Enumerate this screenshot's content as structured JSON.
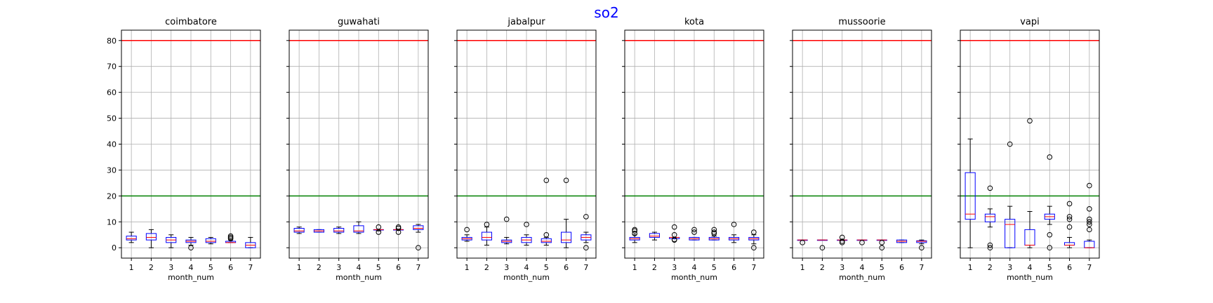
{
  "figure": {
    "title": "so2"
  },
  "colors": {
    "box": "#0000ff",
    "median": "#ff0000",
    "whisker": "#000000",
    "grid": "#b0b0b0",
    "upper_line": "#ff0000",
    "lower_line": "#008000"
  },
  "chart_data": {
    "type": "box",
    "xlabel": "month_num",
    "categories": [
      "1",
      "2",
      "3",
      "4",
      "5",
      "6",
      "7"
    ],
    "yticks": [
      "0",
      "10",
      "20",
      "30",
      "40",
      "50",
      "60",
      "70",
      "80"
    ],
    "ylim": [
      -4,
      84
    ],
    "grid": true,
    "reference_lines": [
      {
        "value": 80,
        "color": "red"
      },
      {
        "value": 20,
        "color": "green"
      }
    ],
    "panels": [
      {
        "title": "coimbatore",
        "boxes": [
          {
            "month": 1,
            "whislo": 2,
            "q1": 3,
            "med": 3.5,
            "q3": 4.5,
            "whishi": 6,
            "fliers": []
          },
          {
            "month": 2,
            "whislo": 0,
            "q1": 3,
            "med": 4,
            "q3": 5.5,
            "whishi": 7,
            "fliers": []
          },
          {
            "month": 3,
            "whislo": 0,
            "q1": 2,
            "med": 3,
            "q3": 4,
            "whishi": 5,
            "fliers": []
          },
          {
            "month": 4,
            "whislo": 1,
            "q1": 2,
            "med": 2.5,
            "q3": 3,
            "whishi": 4,
            "fliers": [
              0
            ]
          },
          {
            "month": 5,
            "whislo": 1.5,
            "q1": 2,
            "med": 2.5,
            "q3": 3.5,
            "whishi": 4,
            "fliers": []
          },
          {
            "month": 6,
            "whislo": 2,
            "q1": 2,
            "med": 2,
            "q3": 2.5,
            "whishi": 3,
            "fliers": [
              3.5,
              4,
              4.5
            ]
          },
          {
            "month": 7,
            "whislo": 0,
            "q1": 0,
            "med": 1,
            "q3": 2,
            "whishi": 4,
            "fliers": []
          }
        ]
      },
      {
        "title": "guwahati",
        "boxes": [
          {
            "month": 1,
            "whislo": 5.5,
            "q1": 6,
            "med": 6.5,
            "q3": 7.5,
            "whishi": 8,
            "fliers": []
          },
          {
            "month": 2,
            "whislo": 6,
            "q1": 6,
            "med": 6.5,
            "q3": 7,
            "whishi": 7,
            "fliers": []
          },
          {
            "month": 3,
            "whislo": 5.5,
            "q1": 6,
            "med": 6.5,
            "q3": 7.5,
            "whishi": 8,
            "fliers": []
          },
          {
            "month": 4,
            "whislo": 5.5,
            "q1": 6,
            "med": 6.5,
            "q3": 8.5,
            "whishi": 10,
            "fliers": []
          },
          {
            "month": 5,
            "whislo": 6.5,
            "q1": 7,
            "med": 7,
            "q3": 7,
            "whishi": 7,
            "fliers": [
              6,
              8
            ]
          },
          {
            "month": 6,
            "whislo": 7,
            "q1": 7,
            "med": 7,
            "q3": 7,
            "whishi": 7,
            "fliers": [
              6,
              7.5,
              8
            ]
          },
          {
            "month": 7,
            "whislo": 6,
            "q1": 7,
            "med": 7.5,
            "q3": 8.5,
            "whishi": 9,
            "fliers": [
              0
            ]
          }
        ]
      },
      {
        "title": "jabalpur",
        "boxes": [
          {
            "month": 1,
            "whislo": 2.5,
            "q1": 3,
            "med": 3.5,
            "q3": 4,
            "whishi": 5,
            "fliers": [
              7
            ]
          },
          {
            "month": 2,
            "whislo": 1,
            "q1": 3,
            "med": 4,
            "q3": 6,
            "whishi": 8,
            "fliers": [
              9
            ]
          },
          {
            "month": 3,
            "whislo": 1.5,
            "q1": 2,
            "med": 2.5,
            "q3": 3,
            "whishi": 4,
            "fliers": [
              11
            ]
          },
          {
            "month": 4,
            "whislo": 1,
            "q1": 2,
            "med": 3,
            "q3": 4,
            "whishi": 5,
            "fliers": [
              9
            ]
          },
          {
            "month": 5,
            "whislo": 1,
            "q1": 2,
            "med": 2.5,
            "q3": 3.5,
            "whishi": 4,
            "fliers": [
              5,
              26
            ]
          },
          {
            "month": 6,
            "whislo": 0,
            "q1": 2,
            "med": 3,
            "q3": 6,
            "whishi": 11,
            "fliers": [
              26
            ]
          },
          {
            "month": 7,
            "whislo": 2,
            "q1": 3,
            "med": 4,
            "q3": 5,
            "whishi": 6,
            "fliers": [
              0,
              12
            ]
          }
        ]
      },
      {
        "title": "kota",
        "boxes": [
          {
            "month": 1,
            "whislo": 2,
            "q1": 3,
            "med": 3.5,
            "q3": 4,
            "whishi": 5,
            "fliers": [
              5.5,
              6.5,
              7
            ]
          },
          {
            "month": 2,
            "whislo": 3,
            "q1": 4,
            "med": 4.5,
            "q3": 5.5,
            "whishi": 6,
            "fliers": []
          },
          {
            "month": 3,
            "whislo": 3.5,
            "q1": 3.5,
            "med": 4,
            "q3": 4,
            "whishi": 4,
            "fliers": [
              3,
              3.2,
              5,
              8
            ]
          },
          {
            "month": 4,
            "whislo": 3,
            "q1": 3,
            "med": 3.5,
            "q3": 4,
            "whishi": 4,
            "fliers": [
              6,
              7
            ]
          },
          {
            "month": 5,
            "whislo": 3,
            "q1": 3,
            "med": 3.5,
            "q3": 4,
            "whishi": 4.5,
            "fliers": [
              5.5,
              6,
              7
            ]
          },
          {
            "month": 6,
            "whislo": 2,
            "q1": 3,
            "med": 3.5,
            "q3": 4,
            "whishi": 5,
            "fliers": [
              9
            ]
          },
          {
            "month": 7,
            "whislo": 1.5,
            "q1": 3,
            "med": 3.5,
            "q3": 4,
            "whishi": 5,
            "fliers": [
              0,
              6
            ]
          }
        ]
      },
      {
        "title": "mussoorie",
        "boxes": [
          {
            "month": 1,
            "whislo": 3,
            "q1": 3,
            "med": 3,
            "q3": 3,
            "whishi": 3,
            "fliers": [
              2
            ]
          },
          {
            "month": 2,
            "whislo": 3,
            "q1": 3,
            "med": 3,
            "q3": 3,
            "whishi": 3,
            "fliers": [
              0
            ]
          },
          {
            "month": 3,
            "whislo": 3,
            "q1": 3,
            "med": 3,
            "q3": 3,
            "whishi": 3,
            "fliers": [
              2,
              2.5,
              4
            ]
          },
          {
            "month": 4,
            "whislo": 3,
            "q1": 3,
            "med": 3,
            "q3": 3,
            "whishi": 3,
            "fliers": [
              2
            ]
          },
          {
            "month": 5,
            "whislo": 3,
            "q1": 3,
            "med": 3,
            "q3": 3,
            "whishi": 3,
            "fliers": [
              0,
              2
            ]
          },
          {
            "month": 6,
            "whislo": 2,
            "q1": 2,
            "med": 2.5,
            "q3": 3,
            "whishi": 3,
            "fliers": []
          },
          {
            "month": 7,
            "whislo": 1.5,
            "q1": 2,
            "med": 2.5,
            "q3": 2.7,
            "whishi": 3,
            "fliers": [
              0
            ]
          }
        ]
      },
      {
        "title": "vapi",
        "boxes": [
          {
            "month": 1,
            "whislo": 0,
            "q1": 11,
            "med": 13,
            "q3": 29,
            "whishi": 42,
            "fliers": []
          },
          {
            "month": 2,
            "whislo": 8,
            "q1": 10,
            "med": 12,
            "q3": 13,
            "whishi": 15,
            "fliers": [
              0,
              1,
              23
            ]
          },
          {
            "month": 3,
            "whislo": 0,
            "q1": 0,
            "med": 9,
            "q3": 11,
            "whishi": 16,
            "fliers": [
              40
            ]
          },
          {
            "month": 4,
            "whislo": 0,
            "q1": 1,
            "med": 1,
            "q3": 7,
            "whishi": 14,
            "fliers": [
              49
            ]
          },
          {
            "month": 5,
            "whislo": 9,
            "q1": 11,
            "med": 12,
            "q3": 13,
            "whishi": 16,
            "fliers": [
              0,
              5,
              35
            ]
          },
          {
            "month": 6,
            "whislo": 0,
            "q1": 1,
            "med": 1,
            "q3": 2,
            "whishi": 4,
            "fliers": [
              8,
              11,
              12,
              17
            ]
          },
          {
            "month": 7,
            "whislo": 0,
            "q1": 0,
            "med": 0,
            "q3": 2.5,
            "whishi": 3,
            "fliers": [
              7,
              9,
              10,
              11,
              15,
              24
            ]
          }
        ]
      }
    ]
  }
}
